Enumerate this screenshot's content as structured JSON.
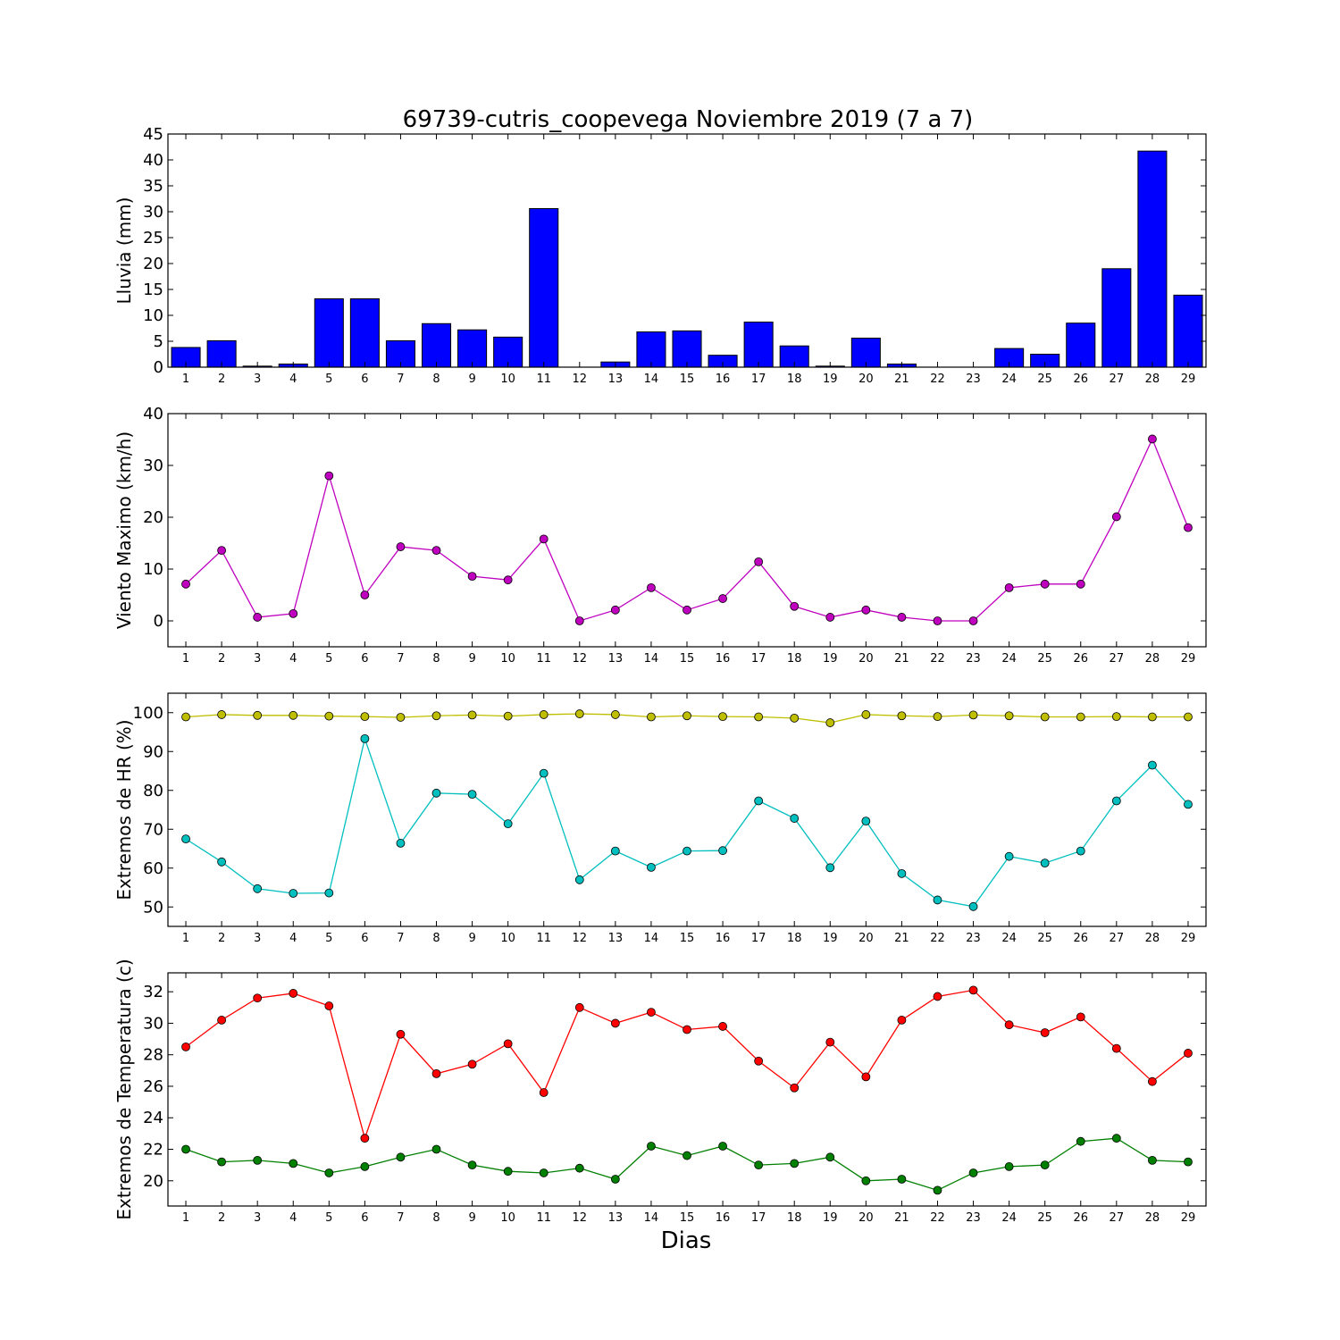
{
  "chart_data": [
    {
      "type": "bar",
      "title": "69739-cutris_coopevega Noviembre 2019  (7 a 7)",
      "ylabel": "Lluvia (mm)",
      "xlabel": "",
      "x": [
        1,
        2,
        3,
        4,
        5,
        6,
        7,
        8,
        9,
        10,
        11,
        12,
        13,
        14,
        15,
        16,
        17,
        18,
        19,
        20,
        21,
        22,
        23,
        24,
        25,
        26,
        27,
        28,
        29
      ],
      "values": [
        3.8,
        5.1,
        0.2,
        0.6,
        13.2,
        13.2,
        5.1,
        8.4,
        7.2,
        5.8,
        30.6,
        0,
        1.0,
        6.8,
        7.0,
        2.3,
        8.7,
        4.1,
        0.2,
        5.6,
        0.6,
        0,
        0,
        3.6,
        2.5,
        8.5,
        19.0,
        41.7,
        13.9
      ],
      "ylim": [
        0,
        45
      ],
      "yticks": [
        0,
        5,
        10,
        15,
        20,
        25,
        30,
        35,
        40,
        45
      ],
      "xlim": [
        0.5,
        29.5
      ],
      "colors": [
        "#0000ff"
      ]
    },
    {
      "type": "line",
      "title": "",
      "ylabel": "Viento Maximo (km/h)",
      "xlabel": "",
      "x": [
        1,
        2,
        3,
        4,
        5,
        6,
        7,
        8,
        9,
        10,
        11,
        12,
        13,
        14,
        15,
        16,
        17,
        18,
        19,
        20,
        21,
        22,
        23,
        24,
        25,
        26,
        27,
        28,
        29
      ],
      "series": [
        {
          "values": [
            7.1,
            13.6,
            0.7,
            1.4,
            28.0,
            5.0,
            14.3,
            13.6,
            8.6,
            7.9,
            15.8,
            0.0,
            2.1,
            6.4,
            2.1,
            4.3,
            11.4,
            2.8,
            0.7,
            2.1,
            0.7,
            0.0,
            0.0,
            6.4,
            7.1,
            7.1,
            20.1,
            35.1,
            18.0
          ]
        }
      ],
      "ylim": [
        -5,
        40
      ],
      "yticks": [
        0,
        10,
        20,
        30,
        40
      ],
      "xlim": [
        0.5,
        29.5
      ],
      "colors": [
        "#bf00bf"
      ]
    },
    {
      "type": "line",
      "title": "",
      "ylabel": "Extremos de HR (%)",
      "xlabel": "",
      "x": [
        1,
        2,
        3,
        4,
        5,
        6,
        7,
        8,
        9,
        10,
        11,
        12,
        13,
        14,
        15,
        16,
        17,
        18,
        19,
        20,
        21,
        22,
        23,
        24,
        25,
        26,
        27,
        28,
        29
      ],
      "series": [
        {
          "values": [
            98.9,
            99.5,
            99.3,
            99.3,
            99.1,
            99.0,
            98.8,
            99.2,
            99.4,
            99.1,
            99.5,
            99.7,
            99.5,
            98.9,
            99.2,
            99.0,
            98.9,
            98.6,
            97.4,
            99.5,
            99.2,
            99.0,
            99.4,
            99.2,
            98.9,
            98.9,
            99.0,
            98.9,
            98.9
          ]
        },
        {
          "values": [
            67.5,
            61.6,
            54.7,
            53.5,
            53.6,
            93.3,
            66.4,
            79.3,
            79.0,
            71.4,
            84.4,
            57.0,
            64.4,
            60.2,
            64.4,
            64.5,
            77.3,
            72.8,
            60.1,
            72.1,
            58.6,
            51.8,
            50.1,
            63.0,
            61.3,
            64.4,
            77.3,
            86.5,
            76.4
          ]
        }
      ],
      "ylim": [
        45,
        105
      ],
      "yticks": [
        50,
        60,
        70,
        80,
        90,
        100
      ],
      "xlim": [
        0.5,
        29.5
      ],
      "colors": [
        "#bfbf00",
        "#00bfbf"
      ]
    },
    {
      "type": "line",
      "title": "",
      "ylabel": "Extremos de Temperatura (c)",
      "xlabel": "Dias",
      "x": [
        1,
        2,
        3,
        4,
        5,
        6,
        7,
        8,
        9,
        10,
        11,
        12,
        13,
        14,
        15,
        16,
        17,
        18,
        19,
        20,
        21,
        22,
        23,
        24,
        25,
        26,
        27,
        28,
        29
      ],
      "series": [
        {
          "values": [
            28.5,
            30.2,
            31.6,
            31.9,
            31.1,
            22.7,
            29.3,
            26.8,
            27.4,
            28.7,
            25.6,
            31.0,
            30.0,
            30.7,
            29.6,
            29.8,
            27.6,
            25.9,
            28.8,
            26.6,
            30.2,
            31.7,
            32.1,
            29.9,
            29.4,
            30.4,
            28.4,
            26.3,
            28.1
          ]
        },
        {
          "values": [
            22.0,
            21.2,
            21.3,
            21.1,
            20.5,
            20.9,
            21.5,
            22.0,
            21.0,
            20.6,
            20.5,
            20.8,
            20.1,
            22.2,
            21.6,
            22.2,
            21.0,
            21.1,
            21.5,
            20.0,
            20.1,
            19.4,
            20.5,
            20.9,
            21.0,
            22.5,
            22.7,
            21.3,
            21.2
          ]
        }
      ],
      "ylim": [
        18.4,
        33.2
      ],
      "yticks": [
        20,
        22,
        24,
        26,
        28,
        30,
        32
      ],
      "xlim": [
        0.5,
        29.5
      ],
      "colors": [
        "#ff0000",
        "#008000"
      ]
    }
  ]
}
